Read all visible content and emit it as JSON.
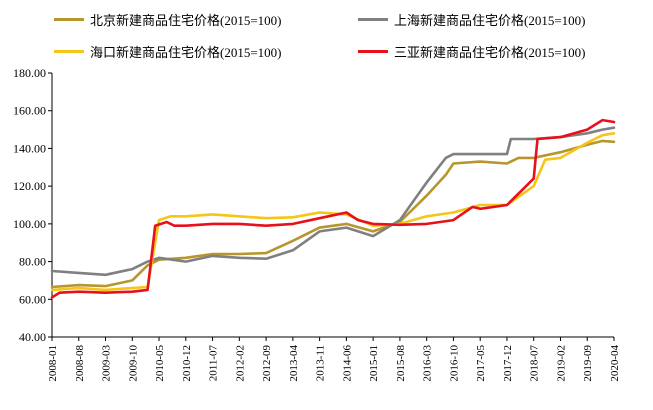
{
  "chart_data": {
    "type": "line",
    "xlabel": "",
    "ylabel": "",
    "ylim": [
      40,
      180
    ],
    "yticks": [
      "40.00",
      "60.00",
      "80.00",
      "100.00",
      "120.00",
      "140.00",
      "160.00",
      "180.00"
    ],
    "xticks": [
      "2008-01",
      "2008-08",
      "2009-03",
      "2009-10",
      "2010-05",
      "2010-12",
      "2011-07",
      "2012-02",
      "2012-09",
      "2013-04",
      "2013-11",
      "2014-06",
      "2015-01",
      "2015-08",
      "2016-03",
      "2016-10",
      "2017-05",
      "2017-12",
      "2018-07",
      "2019-02",
      "2019-09",
      "2020-04"
    ],
    "grid": false,
    "legend_position": "top",
    "series": [
      {
        "name": "北京新建商品住宅价格(2015=100)",
        "color": "#B8962E",
        "points": [
          [
            "2008-01",
            66.5
          ],
          [
            "2008-08",
            67.5
          ],
          [
            "2009-03",
            67
          ],
          [
            "2009-10",
            70
          ],
          [
            "2010-02",
            78
          ],
          [
            "2010-05",
            81
          ],
          [
            "2010-12",
            82
          ],
          [
            "2011-07",
            84
          ],
          [
            "2012-02",
            84
          ],
          [
            "2012-09",
            84.5
          ],
          [
            "2013-04",
            91
          ],
          [
            "2013-11",
            98
          ],
          [
            "2014-06",
            100
          ],
          [
            "2015-01",
            96
          ],
          [
            "2015-08",
            101
          ],
          [
            "2016-03",
            115
          ],
          [
            "2016-08",
            126
          ],
          [
            "2016-10",
            132
          ],
          [
            "2017-05",
            133
          ],
          [
            "2017-12",
            132
          ],
          [
            "2018-03",
            135
          ],
          [
            "2018-07",
            135
          ],
          [
            "2019-02",
            138
          ],
          [
            "2019-09",
            142
          ],
          [
            "2020-01",
            144
          ],
          [
            "2020-04",
            143.5
          ]
        ]
      },
      {
        "name": "上海新建商品住宅价格(2015=100)",
        "color": "#808080",
        "points": [
          [
            "2008-01",
            75
          ],
          [
            "2008-08",
            74
          ],
          [
            "2009-03",
            73
          ],
          [
            "2009-10",
            76
          ],
          [
            "2010-02",
            80
          ],
          [
            "2010-05",
            82
          ],
          [
            "2010-12",
            80
          ],
          [
            "2011-07",
            83
          ],
          [
            "2012-02",
            82
          ],
          [
            "2012-09",
            81.5
          ],
          [
            "2013-04",
            86
          ],
          [
            "2013-11",
            96
          ],
          [
            "2014-06",
            98
          ],
          [
            "2015-01",
            93.5
          ],
          [
            "2015-08",
            102
          ],
          [
            "2016-03",
            122
          ],
          [
            "2016-08",
            135
          ],
          [
            "2016-10",
            137
          ],
          [
            "2017-05",
            137
          ],
          [
            "2017-12",
            137
          ],
          [
            "2018-01",
            145
          ],
          [
            "2018-07",
            145
          ],
          [
            "2019-02",
            146
          ],
          [
            "2019-09",
            148
          ],
          [
            "2020-01",
            150
          ],
          [
            "2020-04",
            151
          ]
        ]
      },
      {
        "name": "海口新建商品住宅价格(2015=100)",
        "color": "#F5C518",
        "points": [
          [
            "2008-01",
            65
          ],
          [
            "2008-08",
            66
          ],
          [
            "2009-03",
            65
          ],
          [
            "2009-10",
            66
          ],
          [
            "2010-02",
            66.5
          ],
          [
            "2010-05",
            102
          ],
          [
            "2010-08",
            104
          ],
          [
            "2010-12",
            104
          ],
          [
            "2011-07",
            105
          ],
          [
            "2012-02",
            104
          ],
          [
            "2012-09",
            103
          ],
          [
            "2013-04",
            103.5
          ],
          [
            "2013-11",
            106
          ],
          [
            "2014-06",
            105
          ],
          [
            "2015-01",
            99
          ],
          [
            "2015-08",
            100
          ],
          [
            "2016-03",
            104
          ],
          [
            "2016-10",
            106
          ],
          [
            "2017-05",
            110
          ],
          [
            "2017-12",
            110
          ],
          [
            "2018-07",
            120
          ],
          [
            "2018-10",
            134
          ],
          [
            "2019-02",
            135
          ],
          [
            "2019-09",
            143
          ],
          [
            "2020-01",
            147
          ],
          [
            "2020-04",
            148
          ]
        ]
      },
      {
        "name": "三亚新建商品住宅价格(2015=100)",
        "color": "#E8101A",
        "points": [
          [
            "2008-01",
            61
          ],
          [
            "2008-03",
            63.5
          ],
          [
            "2008-08",
            64
          ],
          [
            "2009-03",
            63.5
          ],
          [
            "2009-10",
            64
          ],
          [
            "2010-02",
            65
          ],
          [
            "2010-04",
            99
          ],
          [
            "2010-07",
            101
          ],
          [
            "2010-09",
            99
          ],
          [
            "2010-12",
            99
          ],
          [
            "2011-07",
            100
          ],
          [
            "2012-02",
            100
          ],
          [
            "2012-09",
            99
          ],
          [
            "2013-04",
            100
          ],
          [
            "2013-11",
            103
          ],
          [
            "2014-06",
            106
          ],
          [
            "2014-09",
            102
          ],
          [
            "2015-01",
            100
          ],
          [
            "2015-08",
            99.5
          ],
          [
            "2016-03",
            100
          ],
          [
            "2016-10",
            102
          ],
          [
            "2017-03",
            109
          ],
          [
            "2017-05",
            108
          ],
          [
            "2017-12",
            110
          ],
          [
            "2018-07",
            124
          ],
          [
            "2018-08",
            145
          ],
          [
            "2019-02",
            146
          ],
          [
            "2019-09",
            150
          ],
          [
            "2020-01",
            155
          ],
          [
            "2020-04",
            154
          ]
        ]
      }
    ]
  }
}
